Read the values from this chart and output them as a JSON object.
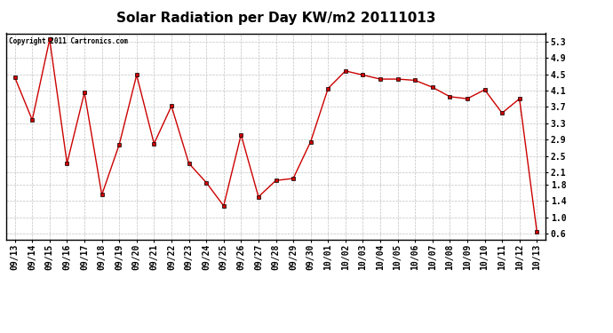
{
  "title": "Solar Radiation per Day KW/m2 20111013",
  "copyright_text": "Copyright 2011 Cartronics.com",
  "x_labels": [
    "09/13",
    "09/14",
    "09/15",
    "09/16",
    "09/17",
    "09/18",
    "09/19",
    "09/20",
    "09/21",
    "09/22",
    "09/23",
    "09/24",
    "09/25",
    "09/26",
    "09/27",
    "09/28",
    "09/29",
    "09/30",
    "10/01",
    "10/02",
    "10/03",
    "10/04",
    "10/05",
    "10/06",
    "10/07",
    "10/08",
    "10/09",
    "10/10",
    "10/11",
    "10/12",
    "10/13"
  ],
  "y_values": [
    4.42,
    3.38,
    5.35,
    2.32,
    4.05,
    1.55,
    2.78,
    4.48,
    2.8,
    3.72,
    2.32,
    1.85,
    1.28,
    3.02,
    1.5,
    1.9,
    1.95,
    2.85,
    4.15,
    4.58,
    4.48,
    4.38,
    4.38,
    4.35,
    4.18,
    3.95,
    3.9,
    4.12,
    3.55,
    3.9,
    0.65
  ],
  "line_color": "#cc0000",
  "marker_color": "#cc0000",
  "marker_edge_color": "#000000",
  "bg_color": "#ffffff",
  "grid_color": "#c0c0c0",
  "title_fontsize": 11,
  "y_ticks": [
    0.6,
    1.0,
    1.4,
    1.8,
    2.1,
    2.5,
    2.9,
    3.3,
    3.7,
    4.1,
    4.5,
    4.9,
    5.3
  ],
  "ylim": [
    0.45,
    5.5
  ],
  "tick_fontsize": 7.0,
  "copyright_fontsize": 5.5,
  "title_font": "DejaVu Sans",
  "mono_font": "DejaVu Sans Mono"
}
